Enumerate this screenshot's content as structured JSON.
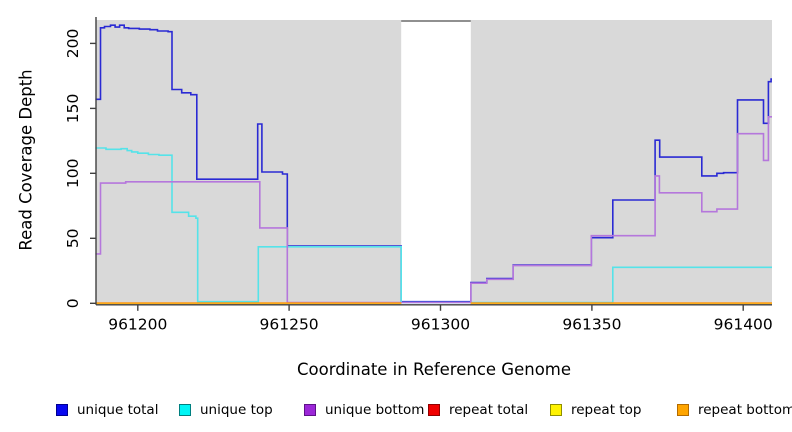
{
  "chart_data": {
    "type": "line",
    "subtype": "step-coverage-plot",
    "title": "",
    "xlabel": "Coordinate in Reference Genome",
    "ylabel": "Read Coverage Depth",
    "xlim": [
      961186.2,
      961409.5
    ],
    "ylim": [
      0,
      218
    ],
    "x_ticks": [
      961200,
      961250,
      961300,
      961350,
      961400
    ],
    "x_tick_labels": [
      "961200",
      "961250",
      "961300",
      "961350",
      "961400"
    ],
    "y_ticks": [
      0,
      50,
      100,
      150,
      200
    ],
    "y_tick_labels": [
      "0",
      "50",
      "100",
      "150",
      "200"
    ],
    "grid": false,
    "legend_position": "bottom",
    "plot_bg": "#d9d9d9",
    "gap_band": {
      "x_start": 961287,
      "x_end": 961310,
      "fill": "#ffffff",
      "top_edge_color": "#909090"
    },
    "series_end_x": 961409.5,
    "series": [
      {
        "name": "unique total",
        "color": "#2a2ad4",
        "legend_fill": "#0808f0",
        "legend_border": "#000090",
        "points": [
          [
            961186,
            157
          ],
          [
            961187.7,
            212
          ],
          [
            961189,
            213
          ],
          [
            961191,
            214
          ],
          [
            961192.5,
            212.5
          ],
          [
            961194,
            214
          ],
          [
            961195.5,
            212
          ],
          [
            961197,
            211.5
          ],
          [
            961200.5,
            211
          ],
          [
            961204,
            210.5
          ],
          [
            961206.5,
            209.5
          ],
          [
            961210,
            209
          ],
          [
            961211.3,
            164.5
          ],
          [
            961214.5,
            162
          ],
          [
            961217.5,
            160.5
          ],
          [
            961219.5,
            95.5
          ],
          [
            961239.6,
            138
          ],
          [
            961241,
            101
          ],
          [
            961247.8,
            99.5
          ],
          [
            961249.4,
            44
          ],
          [
            961287,
            1.2
          ],
          [
            961310,
            16
          ],
          [
            961315.3,
            19
          ],
          [
            961324,
            29.5
          ],
          [
            961349.8,
            50.5
          ],
          [
            961356.9,
            79.5
          ],
          [
            961370.9,
            125.5
          ],
          [
            961372.4,
            112.5
          ],
          [
            961386.3,
            98
          ],
          [
            961391.3,
            100
          ],
          [
            961393.5,
            100.5
          ],
          [
            961398.1,
            156.5
          ],
          [
            961406.7,
            138.5
          ],
          [
            961408.3,
            170.5
          ],
          [
            961409.2,
            172.5
          ],
          [
            961409.5,
            172.5
          ]
        ]
      },
      {
        "name": "unique top",
        "color": "#55e3e9",
        "legend_fill": "#00f5f5",
        "legend_border": "#007f7f",
        "points": [
          [
            961186,
            119.5
          ],
          [
            961189.5,
            118.5
          ],
          [
            961194.5,
            119
          ],
          [
            961196.5,
            117.5
          ],
          [
            961198,
            116.5
          ],
          [
            961200,
            115.5
          ],
          [
            961203.5,
            114.5
          ],
          [
            961207,
            114
          ],
          [
            961211.3,
            70
          ],
          [
            961216.8,
            67
          ],
          [
            961219.2,
            65.5
          ],
          [
            961219.8,
            1.2
          ],
          [
            961239.8,
            43.5
          ],
          [
            961287,
            0.6
          ],
          [
            961356.9,
            27.7
          ],
          [
            961409.5,
            27.7
          ]
        ]
      },
      {
        "name": "unique bottom",
        "color": "#b577dc",
        "legend_fill": "#9c27d8",
        "legend_border": "#5e1288",
        "points": [
          [
            961186,
            38
          ],
          [
            961187.7,
            92.5
          ],
          [
            961196,
            93.5
          ],
          [
            961240.3,
            58
          ],
          [
            961249.4,
            0.6
          ],
          [
            961310,
            15.5
          ],
          [
            961315.3,
            18.5
          ],
          [
            961324,
            29
          ],
          [
            961349.8,
            52
          ],
          [
            961370.9,
            98
          ],
          [
            961372.3,
            85
          ],
          [
            961386.3,
            70.5
          ],
          [
            961391.3,
            72.5
          ],
          [
            961398.1,
            130.5
          ],
          [
            961406.7,
            110
          ],
          [
            961408.3,
            143.5
          ],
          [
            961409.5,
            143.5
          ]
        ]
      },
      {
        "name": "repeat total",
        "color": "#cc0000",
        "legend_fill": "#f00000",
        "legend_border": "#900000",
        "points": [
          [
            961186,
            0
          ],
          [
            961287,
            0
          ],
          null,
          [
            961310,
            0
          ],
          [
            961409.5,
            0
          ]
        ]
      },
      {
        "name": "repeat top",
        "color": "#f5e626",
        "legend_fill": "#fff200",
        "legend_border": "#8f8f00",
        "points": [
          [
            961186,
            0
          ],
          [
            961287,
            0
          ],
          null,
          [
            961310,
            0
          ],
          [
            961409.5,
            0
          ]
        ]
      },
      {
        "name": "repeat bottom",
        "color": "#ff9814",
        "legend_fill": "#ffa500",
        "legend_border": "#b36b00",
        "points": [
          [
            961186,
            0.2
          ],
          [
            961287,
            0.2
          ],
          null,
          [
            961310,
            0.2
          ],
          [
            961409.5,
            0.2
          ]
        ]
      }
    ]
  }
}
